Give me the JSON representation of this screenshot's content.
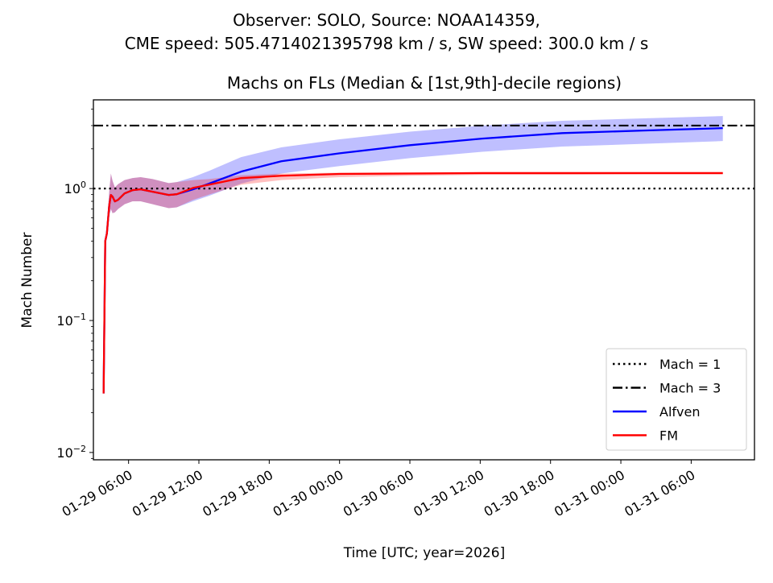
{
  "chart_data": {
    "type": "line",
    "suptitle_line1": "Observer: SOLO, Source: NOAA14359,",
    "suptitle_line2": "CME speed: 505.4714021395798 km / s, SW speed: 300.0 km / s",
    "title": "Machs on FLs (Median & [1st,9th]-decile regions)",
    "xlabel": "Time [UTC; year=2026]",
    "ylabel": "Mach Number",
    "yscale": "log",
    "ylim": [
      0.0088,
      4.7
    ],
    "xlim_hours_from_01_29_00": [
      3.0,
      59.4
    ],
    "x_ticks": [
      {
        "hours": 6,
        "label": "01-29 06:00"
      },
      {
        "hours": 12,
        "label": "01-29 12:00"
      },
      {
        "hours": 18,
        "label": "01-29 18:00"
      },
      {
        "hours": 24,
        "label": "01-30 00:00"
      },
      {
        "hours": 30,
        "label": "01-30 06:00"
      },
      {
        "hours": 36,
        "label": "01-30 12:00"
      },
      {
        "hours": 42,
        "label": "01-30 18:00"
      },
      {
        "hours": 48,
        "label": "01-31 00:00"
      },
      {
        "hours": 54,
        "label": "01-31 06:00"
      }
    ],
    "y_ticks": [
      {
        "value": 0.01,
        "base": "10",
        "exp": "−2"
      },
      {
        "value": 0.1,
        "base": "10",
        "exp": "−1"
      },
      {
        "value": 1,
        "base": "10",
        "exp": "0"
      }
    ],
    "hlines": [
      {
        "name": "Mach = 1",
        "value": 1,
        "style": "dotted",
        "color": "#000000"
      },
      {
        "name": "Mach = 3",
        "value": 3,
        "style": "dashdot",
        "color": "#000000"
      }
    ],
    "x_hours": [
      3.87,
      4.01,
      4.15,
      4.35,
      4.49,
      4.63,
      4.83,
      5.11,
      5.66,
      6.34,
      7.03,
      8.06,
      9.43,
      10.11,
      11.49,
      12.86,
      15.6,
      19.03,
      24,
      30,
      36.17,
      43,
      49.9,
      56.7
    ],
    "series": [
      {
        "name": "Alfven",
        "color": "#0000ff",
        "band_color": "#0000ff",
        "median": [
          0.028,
          0.4,
          0.456,
          0.745,
          0.894,
          0.869,
          0.799,
          0.822,
          0.919,
          0.972,
          0.986,
          0.945,
          0.894,
          0.906,
          0.986,
          1.088,
          1.343,
          1.61,
          1.85,
          2.13,
          2.39,
          2.63,
          2.75,
          2.87
        ],
        "lo": [
          0.028,
          0.38,
          0.42,
          0.62,
          0.7,
          0.65,
          0.66,
          0.7,
          0.76,
          0.8,
          0.8,
          0.76,
          0.71,
          0.72,
          0.8,
          0.88,
          1.09,
          1.3,
          1.48,
          1.7,
          1.9,
          2.08,
          2.18,
          2.29
        ],
        "hi": [
          0.028,
          0.43,
          0.5,
          0.95,
          1.3,
          1.15,
          1.02,
          1.08,
          1.16,
          1.2,
          1.22,
          1.18,
          1.1,
          1.12,
          1.22,
          1.36,
          1.73,
          2.05,
          2.36,
          2.7,
          3.0,
          3.26,
          3.4,
          3.54
        ]
      },
      {
        "name": "FM",
        "color": "#ff0000",
        "band_color": "#ff0000",
        "median": [
          0.028,
          0.4,
          0.456,
          0.745,
          0.894,
          0.869,
          0.799,
          0.822,
          0.919,
          0.972,
          0.986,
          0.945,
          0.894,
          0.906,
          1.01,
          1.07,
          1.2,
          1.25,
          1.29,
          1.3,
          1.31,
          1.31,
          1.31,
          1.31
        ],
        "lo": [
          0.028,
          0.38,
          0.42,
          0.62,
          0.7,
          0.65,
          0.66,
          0.7,
          0.76,
          0.8,
          0.8,
          0.76,
          0.71,
          0.72,
          0.82,
          0.9,
          1.07,
          1.16,
          1.22,
          1.25,
          1.27,
          1.27,
          1.28,
          1.28
        ],
        "hi": [
          0.028,
          0.43,
          0.5,
          0.95,
          1.3,
          1.15,
          1.02,
          1.08,
          1.16,
          1.2,
          1.22,
          1.18,
          1.1,
          1.12,
          1.16,
          1.18,
          1.26,
          1.3,
          1.32,
          1.33,
          1.33,
          1.33,
          1.33,
          1.33
        ]
      }
    ],
    "legend": {
      "placement": "lower-right",
      "entries": [
        "Mach = 1",
        "Mach = 3",
        "Alfven",
        "FM"
      ]
    }
  }
}
